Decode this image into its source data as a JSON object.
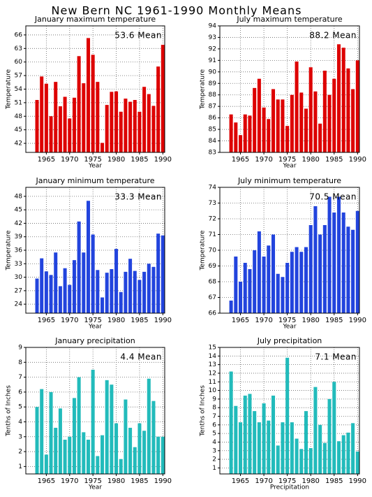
{
  "title": "New Bern NC  1961-1990 Monthly Means",
  "chart_data": [
    {
      "type": "bar",
      "title": "January maximum temperature",
      "annotation": "53.6 Mean",
      "xlabel": "Year",
      "ylabel": "Temperature",
      "x": [
        1963,
        1964,
        1965,
        1966,
        1967,
        1968,
        1969,
        1970,
        1971,
        1972,
        1973,
        1974,
        1975,
        1976,
        1977,
        1978,
        1979,
        1980,
        1981,
        1982,
        1983,
        1984,
        1985,
        1986,
        1987,
        1988,
        1989,
        1990
      ],
      "values": [
        51.6,
        56.8,
        55.2,
        48,
        55.6,
        50.2,
        52.3,
        47.5,
        52.1,
        61.3,
        55.3,
        65.3,
        61.6,
        55.6,
        42.1,
        50.5,
        53.4,
        53.5,
        49,
        51.9,
        51.2,
        51.6,
        49,
        54.5,
        52.9,
        50.3,
        59,
        63.8
      ],
      "color": "#dd0000",
      "xlim": [
        1960.6,
        1990.4
      ],
      "ylim": [
        40,
        68
      ],
      "xticks": [
        1965,
        1970,
        1975,
        1980,
        1985,
        1990
      ],
      "yticks": [
        42,
        45,
        48,
        51,
        54,
        57,
        60,
        63,
        66
      ],
      "grid": true
    },
    {
      "type": "bar",
      "title": "July maximum temperature",
      "annotation": "88.2 Mean",
      "xlabel": "Year",
      "ylabel": "Temperature",
      "x": [
        1963,
        1964,
        1965,
        1966,
        1967,
        1968,
        1969,
        1970,
        1971,
        1972,
        1973,
        1974,
        1975,
        1976,
        1977,
        1978,
        1979,
        1980,
        1981,
        1982,
        1983,
        1984,
        1985,
        1986,
        1987,
        1988,
        1989,
        1990
      ],
      "values": [
        86.3,
        85.6,
        84.5,
        86.3,
        86.2,
        88.6,
        89.4,
        86.9,
        85.9,
        88.5,
        87.6,
        87.6,
        85.3,
        88,
        90.9,
        88.2,
        86.8,
        90.4,
        88.3,
        85.5,
        90.1,
        88,
        89.4,
        92.4,
        92.1,
        90.3,
        88.5,
        91
      ],
      "color": "#dd0000",
      "xlim": [
        1960.6,
        1990.4
      ],
      "ylim": [
        83,
        94
      ],
      "xticks": [
        1965,
        1970,
        1975,
        1980,
        1985,
        1990
      ],
      "yticks": [
        83,
        84,
        85,
        86,
        87,
        88,
        89,
        90,
        91,
        92,
        93,
        94
      ],
      "grid": true
    },
    {
      "type": "bar",
      "title": "January minimum temperature",
      "annotation": "33.3 Mean",
      "xlabel": "Year",
      "ylabel": "Temperature",
      "x": [
        1963,
        1964,
        1965,
        1966,
        1967,
        1968,
        1969,
        1970,
        1971,
        1972,
        1973,
        1974,
        1975,
        1976,
        1977,
        1978,
        1979,
        1980,
        1981,
        1982,
        1983,
        1984,
        1985,
        1986,
        1987,
        1988,
        1989,
        1990
      ],
      "values": [
        29.7,
        34.2,
        31.3,
        30.5,
        35.5,
        28,
        32,
        28.3,
        33.8,
        42.4,
        35.5,
        47,
        39.5,
        31.6,
        25.5,
        31,
        31.8,
        36.3,
        26.7,
        31.2,
        34.1,
        31.4,
        29.4,
        31.2,
        33,
        32.3,
        39.7,
        39.3
      ],
      "color": "#2244dd",
      "xlim": [
        1960.6,
        1990.4
      ],
      "ylim": [
        22,
        50
      ],
      "xticks": [
        1965,
        1970,
        1975,
        1980,
        1985,
        1990
      ],
      "yticks": [
        24,
        27,
        30,
        33,
        36,
        39,
        42,
        45,
        48
      ],
      "grid": true
    },
    {
      "type": "bar",
      "title": "July minimum temperature",
      "annotation": "70.5 Mean",
      "xlabel": "Year",
      "ylabel": "Temperature",
      "x": [
        1963,
        1964,
        1965,
        1966,
        1967,
        1968,
        1969,
        1970,
        1971,
        1972,
        1973,
        1974,
        1975,
        1976,
        1977,
        1978,
        1979,
        1980,
        1981,
        1982,
        1983,
        1984,
        1985,
        1986,
        1987,
        1988,
        1989,
        1990
      ],
      "values": [
        66.8,
        69.6,
        68,
        69.2,
        68.8,
        70,
        71.2,
        69.6,
        70.3,
        71,
        68.5,
        68.3,
        69.2,
        69.9,
        70.2,
        69.9,
        70.2,
        71.6,
        72.8,
        71,
        71.6,
        73.4,
        72.4,
        73.4,
        72.4,
        71.5,
        71.3,
        72.5
      ],
      "color": "#2244dd",
      "xlim": [
        1960.6,
        1990.4
      ],
      "ylim": [
        66,
        74
      ],
      "xticks": [
        1965,
        1970,
        1975,
        1980,
        1985,
        1990
      ],
      "yticks": [
        66,
        67,
        68,
        69,
        70,
        71,
        72,
        73,
        74
      ],
      "grid": true
    },
    {
      "type": "bar",
      "title": "January precipitation",
      "annotation": "4.4 Mean",
      "xlabel": "Year",
      "ylabel": "Tenths of Inches",
      "x": [
        1963,
        1964,
        1965,
        1966,
        1967,
        1968,
        1969,
        1970,
        1971,
        1972,
        1973,
        1974,
        1975,
        1976,
        1977,
        1978,
        1979,
        1980,
        1981,
        1982,
        1983,
        1984,
        1985,
        1986,
        1987,
        1988,
        1989,
        1990
      ],
      "values": [
        5,
        6.2,
        1.8,
        6,
        3.6,
        4.9,
        2.8,
        3,
        5.6,
        7,
        3.3,
        2.8,
        7.5,
        1.7,
        3.1,
        6.8,
        6.5,
        3.9,
        1.5,
        5.5,
        3.6,
        2.3,
        3.9,
        3.4,
        6.9,
        5.4,
        3,
        3
      ],
      "color": "#22bbbb",
      "xlim": [
        1960.6,
        1990.4
      ],
      "ylim": [
        0.5,
        9
      ],
      "xticks": [
        1965,
        1970,
        1975,
        1980,
        1985,
        1990
      ],
      "yticks": [
        1,
        2,
        3,
        4,
        5,
        6,
        7,
        8,
        9
      ],
      "grid": true
    },
    {
      "type": "bar",
      "title": "July precipitation",
      "annotation": "7.1 Mean",
      "xlabel": "Precipitation",
      "ylabel": "Tenths of Inches",
      "x": [
        1963,
        1964,
        1965,
        1966,
        1967,
        1968,
        1969,
        1970,
        1971,
        1972,
        1973,
        1974,
        1975,
        1976,
        1977,
        1978,
        1979,
        1980,
        1981,
        1982,
        1983,
        1984,
        1985,
        1986,
        1987,
        1988,
        1989,
        1990
      ],
      "values": [
        12.2,
        8.2,
        6.3,
        9.4,
        9.6,
        7.6,
        6.3,
        8.5,
        6.5,
        9.4,
        3.6,
        6.3,
        13.8,
        6.3,
        4.4,
        3.2,
        7.6,
        3.3,
        10.4,
        6,
        3.9,
        9,
        11,
        4.1,
        4.8,
        5.1,
        6.2,
        2.9
      ],
      "color": "#22bbbb",
      "xlim": [
        1960.6,
        1990.4
      ],
      "ylim": [
        0.3,
        15
      ],
      "xticks": [
        1965,
        1970,
        1975,
        1980,
        1985,
        1990
      ],
      "yticks": [
        1,
        2,
        3,
        4,
        5,
        6,
        7,
        8,
        9,
        10,
        11,
        12,
        13,
        14,
        15
      ],
      "grid": true
    }
  ]
}
